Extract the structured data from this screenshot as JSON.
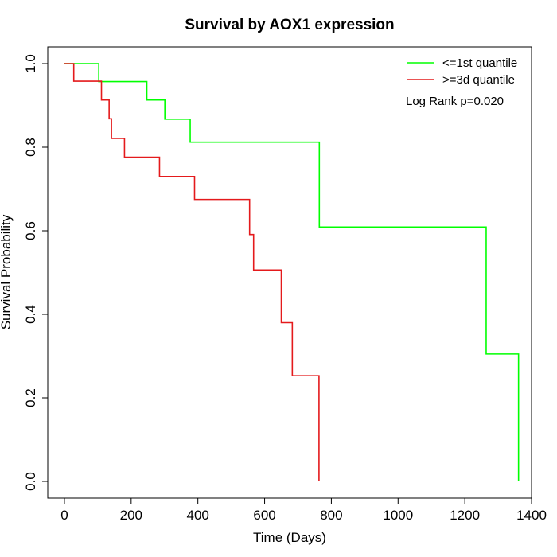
{
  "chart_data": {
    "type": "line",
    "step": true,
    "title": "Survival by AOX1 expression",
    "xlabel": "Time (Days)",
    "ylabel": "Survival Probability",
    "xlim": [
      -50,
      1400
    ],
    "ylim": [
      -0.04,
      1.04
    ],
    "x_ticks": [
      0,
      200,
      400,
      600,
      800,
      1000,
      1200,
      1400
    ],
    "y_ticks": [
      0.0,
      0.2,
      0.4,
      0.6,
      0.8,
      1.0
    ],
    "x_tick_labels": [
      "0",
      "200",
      "400",
      "600",
      "800",
      "1000",
      "1200",
      "1400"
    ],
    "y_tick_labels": [
      "0.0",
      "0.2",
      "0.4",
      "0.6",
      "0.8",
      "1.0"
    ],
    "grid": false,
    "legend_position": "top-right",
    "series": [
      {
        "name": "<=1st quantile",
        "color": "#00ff00",
        "x": [
          0,
          103,
          247,
          301,
          377,
          764,
          1264,
          1361
        ],
        "y": [
          1.0,
          0.957,
          0.913,
          0.867,
          0.812,
          0.609,
          0.305,
          0.0
        ]
      },
      {
        "name": ">=3d quantile",
        "color": "#e41a1c",
        "x": [
          0,
          28,
          111,
          134,
          141,
          180,
          285,
          390,
          555,
          567,
          650,
          683,
          763
        ],
        "y": [
          1.0,
          0.958,
          0.913,
          0.868,
          0.821,
          0.776,
          0.73,
          0.675,
          0.591,
          0.506,
          0.38,
          0.253,
          0.0
        ]
      }
    ],
    "annotation": "Log Rank p=0.020"
  }
}
